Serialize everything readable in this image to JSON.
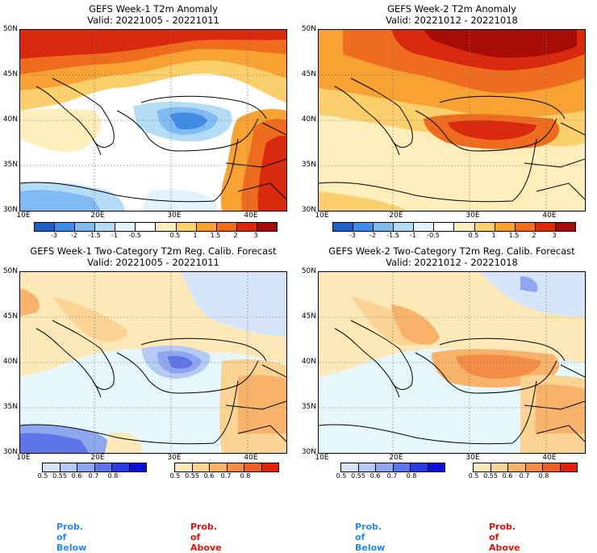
{
  "panels": [
    {
      "id": "p1",
      "title": "GEFS Week-1 T2m Anomaly",
      "valid": "Valid: 20221005 - 20221011"
    },
    {
      "id": "p2",
      "title": "GEFS Week-2 T2m Anomaly",
      "valid": "Valid: 20221012 - 20221018"
    },
    {
      "id": "p3",
      "title": "GEFS Week-1 Two-Category T2m Reg. Calib. Forecast",
      "valid": "Valid: 20221005 - 20221011"
    },
    {
      "id": "p4",
      "title": "GEFS Week-2 Two-Category T2m Reg. Calib. Forecast",
      "valid": "Valid: 20221012 - 20221018"
    }
  ],
  "lat_labels": [
    "50N",
    "45N",
    "40N",
    "35N",
    "30N"
  ],
  "lon_labels": [
    "10E",
    "20E",
    "30E",
    "40E"
  ],
  "anomaly_colorbar": {
    "ticks": [
      "-3",
      "-2",
      "-1.5",
      "-1",
      "-0.5",
      "0.5",
      "1",
      "1.5",
      "2",
      "3"
    ],
    "colors": [
      "#1f5fc6",
      "#3f8be6",
      "#7fbaf2",
      "#b4dcf7",
      "#e3f3fb",
      "#ffffff",
      "#fdeebb",
      "#fbd06c",
      "#f7a233",
      "#ef6c1e",
      "#d92a10",
      "#a80c07"
    ]
  },
  "prob_colorbars": {
    "below": {
      "ticks": [
        "0.5",
        "0.55",
        "0.6",
        "0.7",
        "0.8"
      ],
      "colors": [
        "#d6e4fa",
        "#b5c9f5",
        "#8ea6ef",
        "#5d76e9",
        "#2a3de4",
        "#0a10d8"
      ]
    },
    "above": {
      "ticks": [
        "0.5",
        "0.55",
        "0.6",
        "0.7",
        "0.8"
      ],
      "colors": [
        "#fde9b7",
        "#fbd493",
        "#f8b26a",
        "#f38c45",
        "#ec5f25",
        "#e2220c"
      ]
    }
  },
  "labels": {
    "below": "Prob. of Below",
    "above": "Prob. of Above"
  },
  "label_colors": {
    "below": "#2a86ee",
    "above": "#e0140b"
  }
}
